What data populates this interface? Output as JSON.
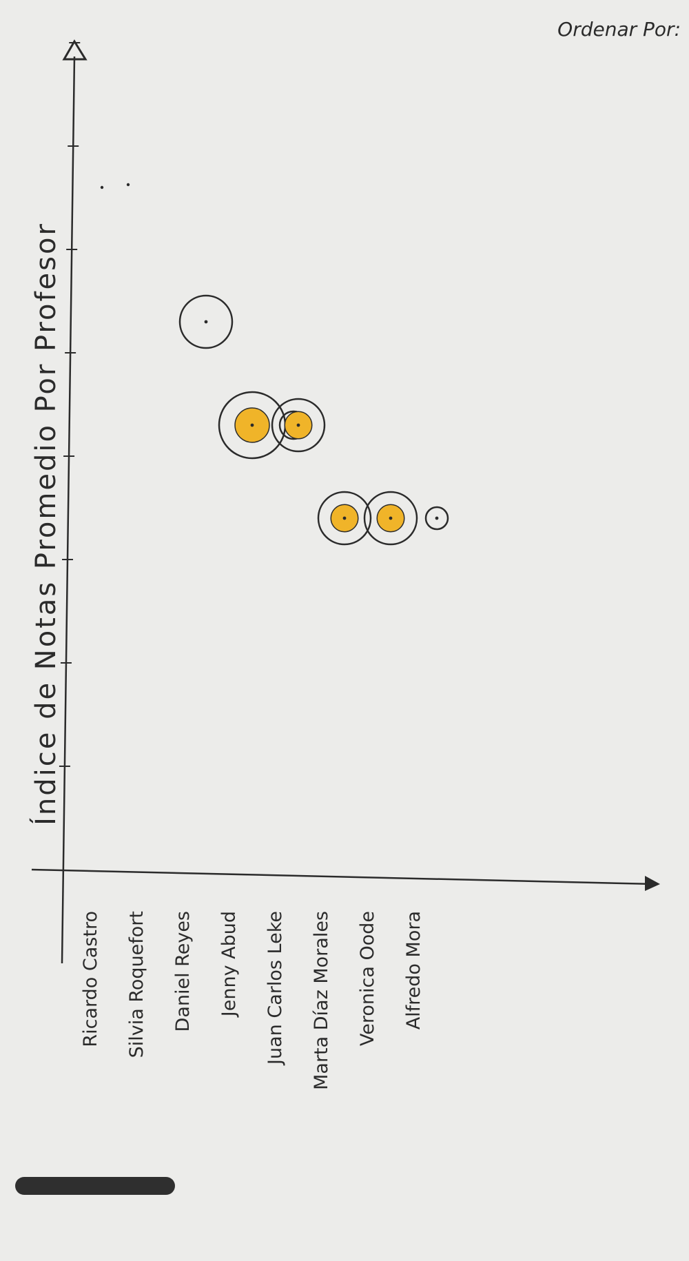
{
  "page": {
    "sort_label": "Ordenar Por:"
  },
  "chart_data": {
    "type": "bubble",
    "title": "",
    "ylabel": "Índice de Notas Promedio Por Profesor",
    "xlabel": "",
    "y_tick_count": 8,
    "categories": [
      "Ricardo Castro",
      "Silvia Roquefort",
      "Daniel Reyes",
      "Jenny Abud",
      "Juan Carlos Leke",
      "Marta Díaz Morales",
      "Veronica Oode",
      "Alfredo Mora"
    ],
    "bubbles": [
      {
        "category": "Daniel Reyes",
        "level": 5.3,
        "size": "medium",
        "filled": false
      },
      {
        "category": "Jenny Abud",
        "level": 4.3,
        "size": "large",
        "filled": true
      },
      {
        "category": "Jenny Abud",
        "level": 4.3,
        "size": "small",
        "filled": false
      },
      {
        "category": "Juan Carlos Leke",
        "level": 4.3,
        "size": "medium",
        "filled": true
      },
      {
        "category": "Marta Díaz Morales",
        "level": 3.4,
        "size": "medium",
        "filled": true
      },
      {
        "category": "Veronica Oode",
        "level": 3.4,
        "size": "medium",
        "filled": true
      },
      {
        "category": "Alfredo Mora",
        "level": 3.4,
        "size": "tiny",
        "filled": false
      }
    ],
    "colors": {
      "ink": "#2b2b2b",
      "fill": "#f0b429",
      "paper": "#ececea"
    }
  }
}
